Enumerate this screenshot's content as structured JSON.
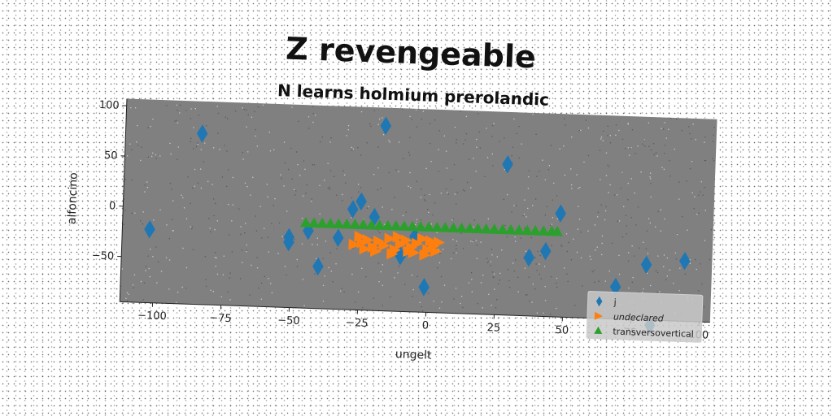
{
  "chart_data": {
    "type": "scatter",
    "title": "Z revengeable",
    "subtitle": "N learns holmium prerolandic",
    "xlabel": "ungelt",
    "ylabel": "alfoncino",
    "xlim": [
      -112,
      104
    ],
    "ylim": [
      -95,
      107
    ],
    "xticks": [
      -100,
      -75,
      -50,
      -25,
      0,
      25,
      50,
      75,
      100
    ],
    "xtick_labels": [
      "−100",
      "−75",
      "−50",
      "−25",
      "0",
      "25",
      "50",
      "75",
      "100"
    ],
    "yticks": [
      -50,
      0,
      50,
      100
    ],
    "ytick_labels": [
      "−50",
      "0",
      "50",
      "100"
    ],
    "grid": false,
    "legend_position": "lower-right",
    "background": "#808080",
    "series": [
      {
        "name": "j",
        "marker": "diamond",
        "color": "#1f77b4",
        "points": [
          [
            -84,
            75
          ],
          [
            -17,
            89
          ],
          [
            28,
            55
          ],
          [
            48,
            8
          ],
          [
            -102,
            -22
          ],
          [
            -51,
            -25
          ],
          [
            -51,
            -30
          ],
          [
            -44,
            -18
          ],
          [
            -33,
            -24
          ],
          [
            -40,
            -53
          ],
          [
            -28,
            5
          ],
          [
            -25,
            13
          ],
          [
            -20,
            -2
          ],
          [
            -10,
            -40
          ],
          [
            -5,
            -20
          ],
          [
            -1,
            -70
          ],
          [
            37,
            -37
          ],
          [
            43,
            -30
          ],
          [
            69,
            -63
          ],
          [
            80,
            -40
          ],
          [
            94,
            -35
          ],
          [
            82,
            -100
          ]
        ]
      },
      {
        "name": "undeclared",
        "marker": "triangle-right",
        "color": "#ff7f0e",
        "points": [
          [
            -27,
            -30
          ],
          [
            -24,
            -28
          ],
          [
            -22,
            -25
          ],
          [
            -20,
            -32
          ],
          [
            -18,
            -26
          ],
          [
            -16,
            -30
          ],
          [
            -14,
            -23
          ],
          [
            -12,
            -34
          ],
          [
            -10,
            -28
          ],
          [
            -8,
            -24
          ],
          [
            -6,
            -31
          ],
          [
            -4,
            -27
          ],
          [
            -2,
            -22
          ],
          [
            0,
            -33
          ],
          [
            2,
            -29
          ],
          [
            4,
            -25
          ],
          [
            -25,
            -22
          ],
          [
            -19,
            -36
          ],
          [
            -13,
            -38
          ],
          [
            -7,
            -35
          ],
          [
            -1,
            -38
          ],
          [
            3,
            -34
          ],
          [
            -23,
            -34
          ],
          [
            -11,
            -21
          ],
          [
            -5,
            -36
          ],
          [
            1,
            -24
          ]
        ]
      },
      {
        "name": "transversovertical",
        "marker": "triangle-up",
        "color": "#2ca02c",
        "points": [
          [
            -45,
            -10
          ],
          [
            -42,
            -10
          ],
          [
            -39,
            -10
          ],
          [
            -36,
            -10
          ],
          [
            -33,
            -10
          ],
          [
            -30,
            -10
          ],
          [
            -27,
            -10
          ],
          [
            -24,
            -10
          ],
          [
            -21,
            -10
          ],
          [
            -18,
            -10
          ],
          [
            -15,
            -10
          ],
          [
            -12,
            -10
          ],
          [
            -9,
            -10
          ],
          [
            -6,
            -10
          ],
          [
            -3,
            -10
          ],
          [
            0,
            -10
          ],
          [
            3,
            -10
          ],
          [
            6,
            -10
          ],
          [
            9,
            -10
          ],
          [
            12,
            -10
          ],
          [
            15,
            -10
          ],
          [
            18,
            -10
          ],
          [
            21,
            -10
          ],
          [
            24,
            -10
          ],
          [
            27,
            -10
          ],
          [
            30,
            -10
          ],
          [
            33,
            -10
          ],
          [
            36,
            -10
          ],
          [
            39,
            -10
          ],
          [
            42,
            -10
          ],
          [
            45,
            -10
          ],
          [
            47,
            -10
          ]
        ]
      }
    ]
  }
}
